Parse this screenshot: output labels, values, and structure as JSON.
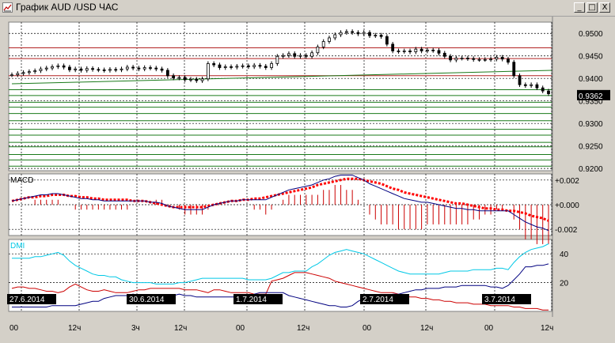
{
  "window": {
    "title": "График AUD /USD ЧАС",
    "controls": {
      "minimize": "_",
      "maximize": "□",
      "close": "X"
    }
  },
  "chart_data": [
    {
      "type": "candlestick",
      "title": "",
      "ylim": [
        0.9195,
        0.9525
      ],
      "ticks": [
        "0.9500",
        "0.9450",
        "0.9400",
        "0.9350",
        "0.9300",
        "0.9250",
        "0.9200"
      ],
      "current_price_label": "0.9362",
      "grid": true,
      "close": [
        0.9408,
        0.9411,
        0.9413,
        0.9415,
        0.9417,
        0.9421,
        0.9423,
        0.9426,
        0.9428,
        0.9425,
        0.9419,
        0.9421,
        0.9418,
        0.9422,
        0.942,
        0.9419,
        0.9418,
        0.942,
        0.9419,
        0.9421,
        0.9425,
        0.9423,
        0.9421,
        0.9424,
        0.9423,
        0.9421,
        0.9418,
        0.9406,
        0.9401,
        0.9402,
        0.9397,
        0.9398,
        0.9395,
        0.9399,
        0.9433,
        0.943,
        0.9424,
        0.9426,
        0.9425,
        0.9427,
        0.9428,
        0.9426,
        0.9429,
        0.9427,
        0.9424,
        0.9433,
        0.9449,
        0.9451,
        0.9455,
        0.9449,
        0.9451,
        0.9449,
        0.9457,
        0.947,
        0.9482,
        0.949,
        0.9497,
        0.9502,
        0.9504,
        0.9502,
        0.9499,
        0.9502,
        0.9495,
        0.9496,
        0.9493,
        0.9476,
        0.9461,
        0.946,
        0.9461,
        0.9459,
        0.9465,
        0.9461,
        0.9463,
        0.9462,
        0.9456,
        0.9449,
        0.9441,
        0.9445,
        0.9445,
        0.9444,
        0.9442,
        0.9442,
        0.9442,
        0.9443,
        0.9447,
        0.9443,
        0.9436,
        0.9406,
        0.9386,
        0.9384,
        0.9386,
        0.9379,
        0.9372,
        0.9366
      ],
      "horizontal_levels_red": [
        0.9468,
        0.9444,
        0.9406
      ],
      "horizontal_levels_green": [
        0.9375,
        0.9362,
        0.9347,
        0.9336,
        0.9322,
        0.9306,
        0.9287,
        0.9274,
        0.9258,
        0.9248,
        0.9231,
        0.9219,
        0.9205
      ],
      "trendline_green": [
        [
          0,
          0.9388
        ],
        [
          93,
          0.9418
        ]
      ]
    },
    {
      "type": "line",
      "title": "MACD",
      "ylim": [
        -0.0025,
        0.0025
      ],
      "ticks": [
        "+0.002",
        "+0.000",
        "-0.002"
      ],
      "series": [
        {
          "name": "",
          "color": "#000080",
          "values": [
            0.0003,
            0.0004,
            0.0005,
            0.0006,
            0.0007,
            0.0008,
            0.0008,
            0.0009,
            0.0009,
            0.0008,
            0.0007,
            0.0006,
            0.0005,
            0.0005,
            0.0004,
            0.0004,
            0.0003,
            0.0003,
            0.0003,
            0.0003,
            0.0003,
            0.0003,
            0.0003,
            0.0003,
            0.0002,
            0.0002,
            0.0001,
            -0.0001,
            -0.0002,
            -0.0003,
            -0.0004,
            -0.0004,
            -0.0004,
            -0.0004,
            -0.0002,
            0.0,
            0.0001,
            0.0002,
            0.0003,
            0.0003,
            0.0004,
            0.0004,
            0.0004,
            0.0004,
            0.0004,
            0.0006,
            0.0008,
            0.001,
            0.0012,
            0.0013,
            0.0014,
            0.0015,
            0.0016,
            0.0018,
            0.002,
            0.0021,
            0.0023,
            0.0024,
            0.0024,
            0.0024,
            0.0022,
            0.002,
            0.0017,
            0.0015,
            0.0013,
            0.0011,
            0.0009,
            0.0007,
            0.0005,
            0.0004,
            0.0003,
            0.0002,
            0.0002,
            0.0001,
            0.0,
            -0.0001,
            -0.0002,
            -0.0003,
            -0.0003,
            -0.0004,
            -0.0004,
            -0.0005,
            -0.0005,
            -0.0005,
            -0.0005,
            -0.0005,
            -0.0005,
            -0.0008,
            -0.0011,
            -0.0014,
            -0.0016,
            -0.0018,
            -0.0019,
            -0.0021
          ]
        },
        {
          "name": "",
          "color": "#ff0000",
          "values": [
            0.0003,
            0.0004,
            0.0005,
            0.0006,
            0.0006,
            0.0007,
            0.0007,
            0.0008,
            0.0008,
            0.0008,
            0.0007,
            0.0007,
            0.0006,
            0.0006,
            0.0005,
            0.0005,
            0.0004,
            0.0004,
            0.0004,
            0.0004,
            0.0004,
            0.0003,
            0.0003,
            0.0003,
            0.0002,
            0.0001,
            0.0,
            -0.0001,
            -0.0002,
            -0.0002,
            -0.0002,
            -0.0002,
            -0.0002,
            -0.0002,
            -0.0001,
            0.0,
            0.0001,
            0.0002,
            0.0003,
            0.0003,
            0.0004,
            0.0004,
            0.0005,
            0.0005,
            0.0006,
            0.0007,
            0.0008,
            0.0009,
            0.001,
            0.0011,
            0.0012,
            0.0013,
            0.0014,
            0.0016,
            0.0017,
            0.0018,
            0.0019,
            0.002,
            0.0021,
            0.0021,
            0.0021,
            0.002,
            0.0019,
            0.0018,
            0.0017,
            0.0015,
            0.0013,
            0.0012,
            0.001,
            0.0009,
            0.0008,
            0.0007,
            0.0006,
            0.0005,
            0.0004,
            0.0003,
            0.0002,
            0.0001,
            0.0001,
            0.0,
            -0.0001,
            -0.0002,
            -0.0003,
            -0.0003,
            -0.0004,
            -0.0004,
            -0.0005,
            -0.0005,
            -0.0006,
            -0.0007,
            -0.0009,
            -0.001,
            -0.0011,
            -0.0013
          ]
        }
      ]
    },
    {
      "type": "line",
      "title": "DMI",
      "ylim": [
        0,
        50
      ],
      "ticks": [
        "40",
        "20"
      ],
      "series": [
        {
          "name": "",
          "color": "#00c8e6",
          "values": [
            37,
            37,
            37,
            37,
            38,
            38,
            39,
            40,
            41,
            39,
            35,
            32,
            30,
            28,
            26,
            25,
            25,
            24,
            24,
            22,
            21,
            20,
            20,
            20,
            20,
            19,
            19,
            19,
            19,
            20,
            20,
            21,
            22,
            23,
            23,
            23,
            23,
            23,
            23,
            23,
            23,
            22,
            22,
            22,
            22,
            23,
            25,
            27,
            27,
            28,
            28,
            28,
            31,
            33,
            36,
            39,
            41,
            42,
            43,
            42,
            41,
            40,
            38,
            36,
            34,
            32,
            30,
            28,
            27,
            26,
            26,
            26,
            26,
            26,
            26,
            27,
            28,
            28,
            28,
            28,
            29,
            29,
            29,
            29,
            30,
            30,
            29,
            34,
            38,
            41,
            43,
            44,
            45,
            47
          ]
        },
        {
          "name": "",
          "color": "#cc0000",
          "values": [
            16,
            17,
            17,
            16,
            16,
            15,
            14,
            14,
            13,
            14,
            17,
            19,
            17,
            15,
            14,
            14,
            15,
            14,
            13,
            13,
            13,
            14,
            15,
            15,
            16,
            16,
            16,
            16,
            16,
            16,
            15,
            15,
            15,
            14,
            13,
            15,
            15,
            14,
            13,
            13,
            13,
            13,
            12,
            12,
            12,
            21,
            22,
            23,
            25,
            27,
            27,
            27,
            26,
            25,
            24,
            23,
            21,
            20,
            19,
            18,
            17,
            16,
            15,
            14,
            13,
            13,
            13,
            12,
            11,
            10,
            10,
            9,
            9,
            8,
            8,
            7,
            7,
            6,
            6,
            6,
            5,
            5,
            5,
            4,
            4,
            4,
            4,
            3,
            3,
            2,
            2,
            2,
            1,
            1
          ]
        },
        {
          "name": "",
          "color": "#000080",
          "values": [
            3,
            3,
            3,
            3,
            3,
            3,
            3,
            4,
            4,
            4,
            4,
            4,
            5,
            6,
            7,
            7,
            9,
            10,
            11,
            11,
            11,
            12,
            11,
            11,
            11,
            10,
            10,
            10,
            11,
            12,
            11,
            11,
            10,
            10,
            10,
            10,
            10,
            10,
            10,
            10,
            11,
            11,
            12,
            13,
            13,
            13,
            13,
            13,
            11,
            10,
            9,
            8,
            7,
            6,
            5,
            4,
            4,
            3,
            3,
            4,
            7,
            9,
            10,
            10,
            11,
            11,
            12,
            12,
            13,
            14,
            15,
            15,
            16,
            16,
            16,
            17,
            17,
            17,
            18,
            18,
            18,
            18,
            18,
            17,
            17,
            16,
            18,
            22,
            26,
            31,
            31,
            32,
            32,
            33
          ]
        }
      ]
    }
  ],
  "time_axis": {
    "dates": [
      "27.6.2014",
      "30.6.2014",
      "1.7.2014",
      "2.7.2014",
      "3.7.2014"
    ],
    "hours": [
      "00",
      "12ч",
      "3ч",
      "12ч",
      "00",
      "12ч",
      "00",
      "12ч",
      "00",
      "12ч"
    ]
  }
}
